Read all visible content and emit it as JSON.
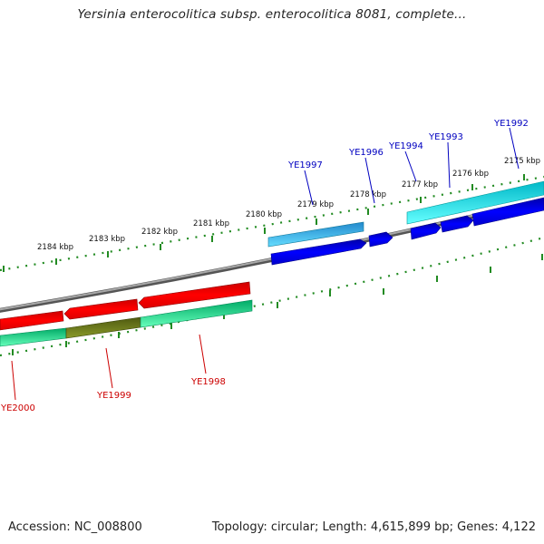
{
  "title": "Yersinia enterocolitica subsp. enterocolitica 8081, complete...",
  "footer": {
    "accession": "Accession: NC_008800",
    "topology": "Topology: circular; Length: 4,615,899 bp; Genes: 4,122"
  },
  "scale_labels": {
    "k2184": "2184 kbp",
    "k2183": "2183 kbp",
    "k2182": "2182 kbp",
    "k2181": "2181 kbp",
    "k2180": "2180 kbp",
    "k2179": "2179 kbp",
    "k2178": "2178 kbp",
    "k2177": "2177 kbp",
    "k2176": "2176 kbp",
    "k2175": "2175 kbp"
  },
  "genes_top": {
    "g1997": "YE1997",
    "g1996": "YE1996",
    "g1994": "YE1994",
    "g1993": "YE1993",
    "g1992": "YE1992"
  },
  "genes_bottom": {
    "g2000": "YE2000",
    "g1999": "YE1999",
    "g1998": "YE1998"
  },
  "colors": {
    "backbone": "#808080",
    "forward_cds": "#0000ee",
    "forward_feature_light": "#33ccee",
    "forward_feature_cyan": "#00e5ff",
    "reverse_cds": "#ee0000",
    "reverse_feature_green": "#00ee88",
    "reverse_feature_olive": "#6b7a1a",
    "tick": "#228b22",
    "label_top": "#0000c0",
    "label_bottom": "#cc0000"
  }
}
